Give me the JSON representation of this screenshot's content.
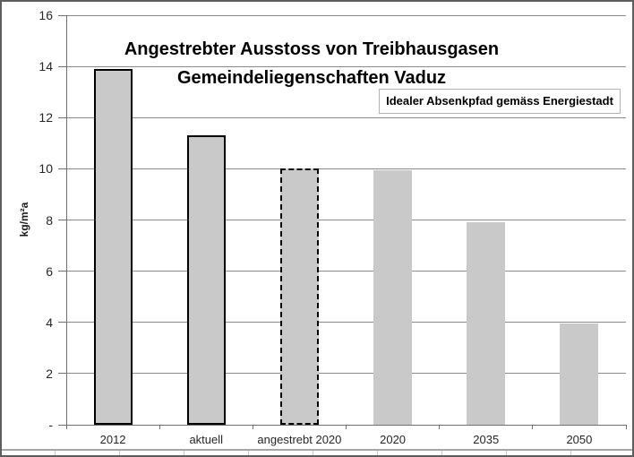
{
  "chart_data": {
    "type": "bar",
    "title": [
      "Angestrebter Ausstoss von Treibhausgasen",
      "Gemeindeliegenschaften Vaduz"
    ],
    "annotation": "Idealer Absenkpfad gemäss Energiestadt",
    "ylabel": "kg/m²a",
    "categories": [
      "2012",
      "aktuell",
      "angestrebt 2020",
      "2020",
      "2035",
      "2050"
    ],
    "values": [
      13.9,
      11.3,
      10.0,
      9.95,
      7.9,
      3.95
    ],
    "bar_borders": [
      "solid",
      "solid",
      "dashed",
      "none",
      "none",
      "none"
    ],
    "ylim": [
      0,
      16
    ],
    "yticks": [
      {
        "v": 0,
        "label": "-"
      },
      {
        "v": 2,
        "label": "2"
      },
      {
        "v": 4,
        "label": "4"
      },
      {
        "v": 6,
        "label": "6"
      },
      {
        "v": 8,
        "label": "8"
      },
      {
        "v": 10,
        "label": "10"
      },
      {
        "v": 12,
        "label": "12"
      },
      {
        "v": 14,
        "label": "14"
      },
      {
        "v": 16,
        "label": "16"
      }
    ],
    "grid": true,
    "legend_position": "none",
    "colors": {
      "bar_fill": "#c9c9c9",
      "bar_border": "#000000",
      "gridline": "#8a8a8a",
      "axis": "#6f6f6f",
      "text": "#262626"
    }
  }
}
